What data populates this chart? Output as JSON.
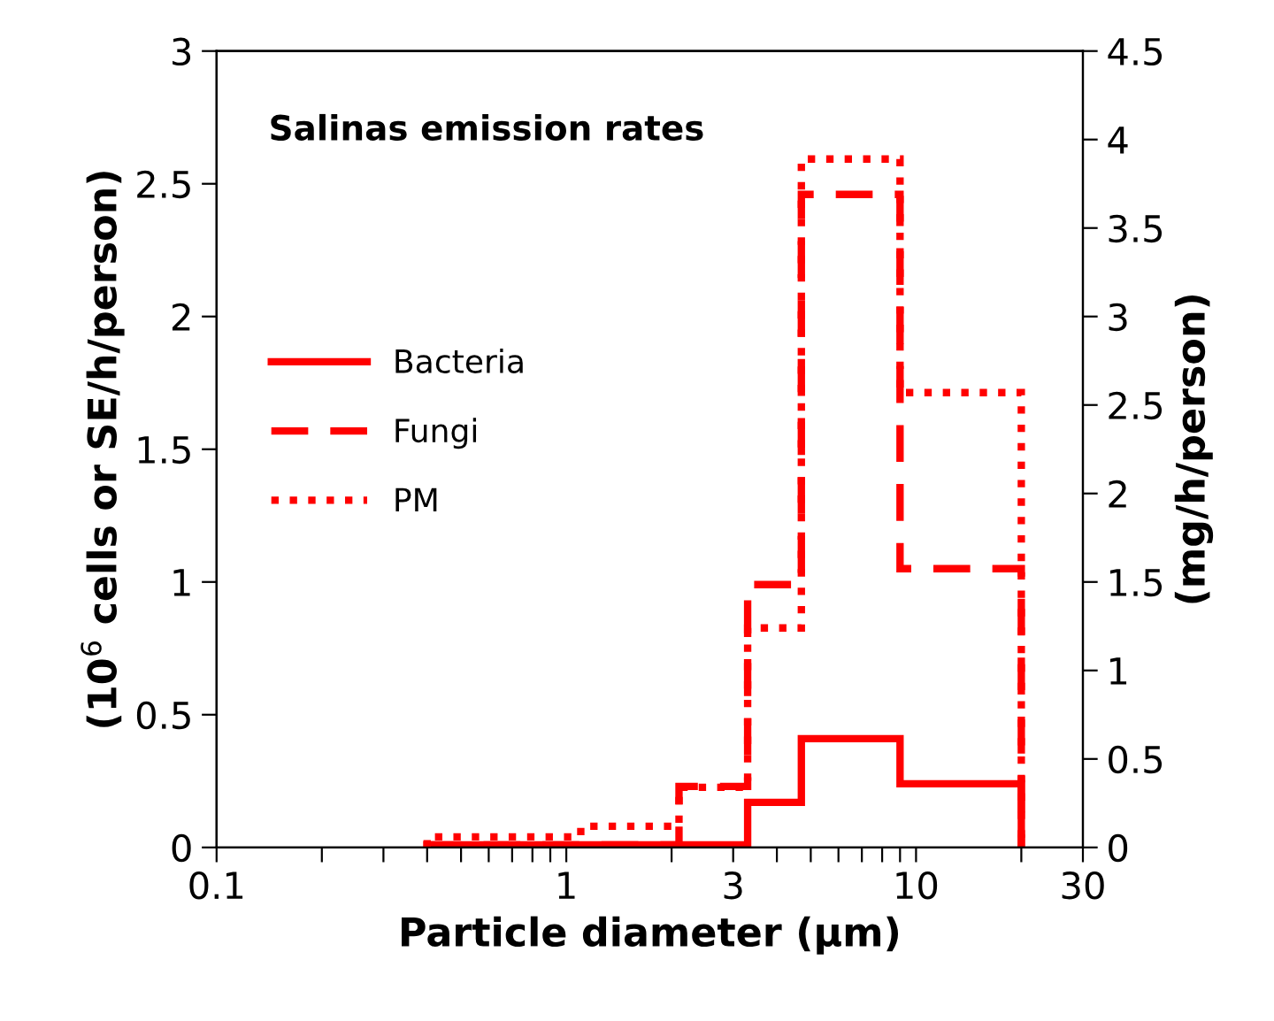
{
  "chart_data": {
    "type": "histogram",
    "title": "Salinas emission rates",
    "xlabel": "Particle diameter (μm)",
    "ylabel": "(10$^{6}$ cells or SE/h/person)",
    "y2label": "(mg/h/person)",
    "bins": [
      0.4,
      1.1,
      2.1,
      3.3,
      4.7,
      9,
      20
    ],
    "series": [
      {
        "name": "Bacteria",
        "color": "#ff0000",
        "line_style": "solid",
        "values": [
          0.01,
          0.01,
          0.01,
          0.17,
          0.41,
          0.24
        ]
      },
      {
        "name": "Fungi",
        "color": "#ff0000",
        "line_style": "dashed",
        "values": [
          0.01,
          0.01,
          0.23,
          0.99,
          2.46,
          1.05
        ]
      },
      {
        "name": "PM",
        "color": "#ff0000",
        "line_style": "dotted",
        "axis": "y2",
        "values": [
          0.06,
          0.12,
          0.34,
          1.24,
          3.89,
          2.57
        ]
      }
    ],
    "log": "x",
    "xlim": [
      0.1,
      30
    ],
    "xticks": [
      0.1,
      {
        "value": 0.2,
        "label": null
      },
      {
        "value": 0.3,
        "label": null
      },
      {
        "value": 0.4,
        "label": null
      },
      {
        "value": 0.5,
        "label": null
      },
      {
        "value": 0.6,
        "label": null
      },
      {
        "value": 0.7,
        "label": null
      },
      {
        "value": 0.8,
        "label": null
      },
      {
        "value": 0.9,
        "label": null
      },
      1,
      {
        "value": 2,
        "label": null
      },
      3,
      {
        "value": 4,
        "label": null
      },
      {
        "value": 5,
        "label": null
      },
      {
        "value": 6,
        "label": null
      },
      {
        "value": 7,
        "label": null
      },
      {
        "value": 8,
        "label": null
      },
      {
        "value": 9,
        "label": null
      },
      10,
      {
        "value": 20,
        "label": null
      },
      30
    ],
    "ylim": [
      0,
      3
    ],
    "yticks": [
      0,
      0.5,
      1,
      1.5,
      2,
      2.5,
      3
    ],
    "y2lim": [
      0,
      4.5
    ],
    "y2ticks": [
      0,
      0.5,
      1,
      1.5,
      2,
      2.5,
      3,
      3.5,
      4,
      4.5
    ],
    "grid": false,
    "legend": "left"
  }
}
